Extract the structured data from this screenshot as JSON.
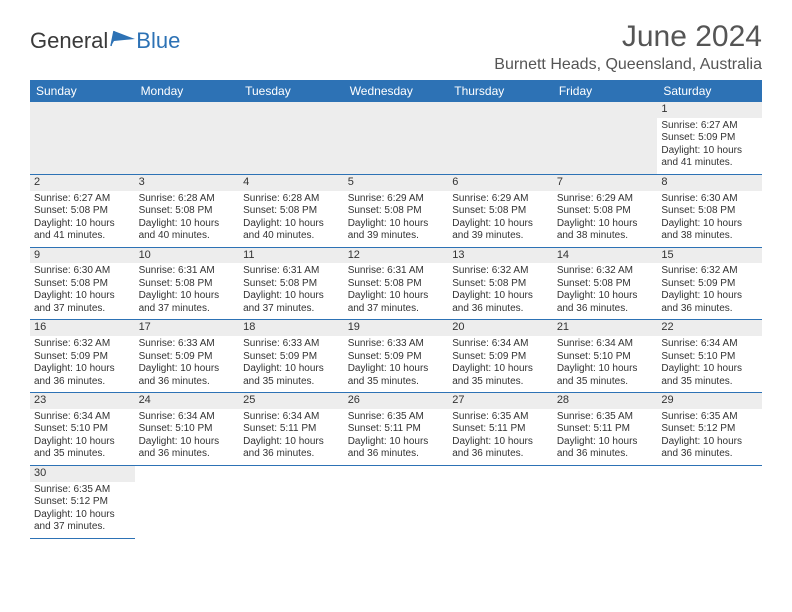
{
  "logo": {
    "general": "General",
    "blue": "Blue"
  },
  "title": "June 2024",
  "location": "Burnett Heads, Queensland, Australia",
  "colors": {
    "header_bg": "#2d72b5",
    "header_fg": "#ffffff",
    "daynum_bg": "#ededed",
    "row_border": "#2d72b5",
    "text": "#333333",
    "title_text": "#555555"
  },
  "weekdays": [
    "Sunday",
    "Monday",
    "Tuesday",
    "Wednesday",
    "Thursday",
    "Friday",
    "Saturday"
  ],
  "first_weekday_index": 6,
  "days": [
    {
      "n": 1,
      "sr": "6:27 AM",
      "ss": "5:09 PM",
      "dl": "10 hours and 41 minutes."
    },
    {
      "n": 2,
      "sr": "6:27 AM",
      "ss": "5:08 PM",
      "dl": "10 hours and 41 minutes."
    },
    {
      "n": 3,
      "sr": "6:28 AM",
      "ss": "5:08 PM",
      "dl": "10 hours and 40 minutes."
    },
    {
      "n": 4,
      "sr": "6:28 AM",
      "ss": "5:08 PM",
      "dl": "10 hours and 40 minutes."
    },
    {
      "n": 5,
      "sr": "6:29 AM",
      "ss": "5:08 PM",
      "dl": "10 hours and 39 minutes."
    },
    {
      "n": 6,
      "sr": "6:29 AM",
      "ss": "5:08 PM",
      "dl": "10 hours and 39 minutes."
    },
    {
      "n": 7,
      "sr": "6:29 AM",
      "ss": "5:08 PM",
      "dl": "10 hours and 38 minutes."
    },
    {
      "n": 8,
      "sr": "6:30 AM",
      "ss": "5:08 PM",
      "dl": "10 hours and 38 minutes."
    },
    {
      "n": 9,
      "sr": "6:30 AM",
      "ss": "5:08 PM",
      "dl": "10 hours and 37 minutes."
    },
    {
      "n": 10,
      "sr": "6:31 AM",
      "ss": "5:08 PM",
      "dl": "10 hours and 37 minutes."
    },
    {
      "n": 11,
      "sr": "6:31 AM",
      "ss": "5:08 PM",
      "dl": "10 hours and 37 minutes."
    },
    {
      "n": 12,
      "sr": "6:31 AM",
      "ss": "5:08 PM",
      "dl": "10 hours and 37 minutes."
    },
    {
      "n": 13,
      "sr": "6:32 AM",
      "ss": "5:08 PM",
      "dl": "10 hours and 36 minutes."
    },
    {
      "n": 14,
      "sr": "6:32 AM",
      "ss": "5:08 PM",
      "dl": "10 hours and 36 minutes."
    },
    {
      "n": 15,
      "sr": "6:32 AM",
      "ss": "5:09 PM",
      "dl": "10 hours and 36 minutes."
    },
    {
      "n": 16,
      "sr": "6:32 AM",
      "ss": "5:09 PM",
      "dl": "10 hours and 36 minutes."
    },
    {
      "n": 17,
      "sr": "6:33 AM",
      "ss": "5:09 PM",
      "dl": "10 hours and 36 minutes."
    },
    {
      "n": 18,
      "sr": "6:33 AM",
      "ss": "5:09 PM",
      "dl": "10 hours and 35 minutes."
    },
    {
      "n": 19,
      "sr": "6:33 AM",
      "ss": "5:09 PM",
      "dl": "10 hours and 35 minutes."
    },
    {
      "n": 20,
      "sr": "6:34 AM",
      "ss": "5:09 PM",
      "dl": "10 hours and 35 minutes."
    },
    {
      "n": 21,
      "sr": "6:34 AM",
      "ss": "5:10 PM",
      "dl": "10 hours and 35 minutes."
    },
    {
      "n": 22,
      "sr": "6:34 AM",
      "ss": "5:10 PM",
      "dl": "10 hours and 35 minutes."
    },
    {
      "n": 23,
      "sr": "6:34 AM",
      "ss": "5:10 PM",
      "dl": "10 hours and 35 minutes."
    },
    {
      "n": 24,
      "sr": "6:34 AM",
      "ss": "5:10 PM",
      "dl": "10 hours and 36 minutes."
    },
    {
      "n": 25,
      "sr": "6:34 AM",
      "ss": "5:11 PM",
      "dl": "10 hours and 36 minutes."
    },
    {
      "n": 26,
      "sr": "6:35 AM",
      "ss": "5:11 PM",
      "dl": "10 hours and 36 minutes."
    },
    {
      "n": 27,
      "sr": "6:35 AM",
      "ss": "5:11 PM",
      "dl": "10 hours and 36 minutes."
    },
    {
      "n": 28,
      "sr": "6:35 AM",
      "ss": "5:11 PM",
      "dl": "10 hours and 36 minutes."
    },
    {
      "n": 29,
      "sr": "6:35 AM",
      "ss": "5:12 PM",
      "dl": "10 hours and 36 minutes."
    },
    {
      "n": 30,
      "sr": "6:35 AM",
      "ss": "5:12 PM",
      "dl": "10 hours and 37 minutes."
    }
  ],
  "labels": {
    "sunrise_prefix": "Sunrise: ",
    "sunset_prefix": "Sunset: ",
    "daylight_prefix": "Daylight: "
  }
}
